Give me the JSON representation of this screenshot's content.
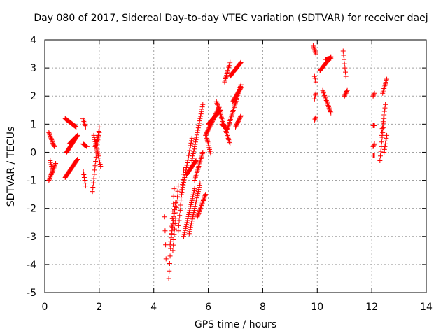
{
  "chart_data": {
    "type": "scatter",
    "title": "Day 080 of 2017, Sidereal Day-to-day VTEC variation (SDTVAR) for receiver daej",
    "xlabel": "GPS time / hours",
    "ylabel": "SDTVAR / TECUs",
    "xlim": [
      0,
      14
    ],
    "ylim": [
      -5,
      4
    ],
    "xticks": [
      "0",
      "2",
      "4",
      "6",
      "8",
      "10",
      "12",
      "14"
    ],
    "yticks": [
      "-5",
      "-4",
      "-3",
      "-2",
      "-1",
      "0",
      "1",
      "2",
      "3",
      "4"
    ],
    "grid": true,
    "marker": "+",
    "marker_color": "#ff0000",
    "series": [
      {
        "name": "SDTVAR",
        "segments": [
          {
            "x": [
              0.15,
              0.35
            ],
            "y": [
              0.7,
              0.2
            ]
          },
          {
            "x": [
              0.15,
              0.4
            ],
            "y": [
              -1.0,
              -0.4
            ]
          },
          {
            "x": [
              0.2,
              0.3
            ],
            "y": [
              -0.3,
              -0.7
            ]
          },
          {
            "x": [
              0.75,
              1.15
            ],
            "y": [
              1.2,
              0.9
            ]
          },
          {
            "x": [
              0.75,
              1.2
            ],
            "y": [
              -0.9,
              -0.25
            ]
          },
          {
            "x": [
              0.8,
              1.2
            ],
            "y": [
              0.0,
              0.6
            ]
          },
          {
            "x": [
              0.9,
              1.15
            ],
            "y": [
              0.3,
              0.55
            ]
          },
          {
            "x": [
              1.4,
              1.5
            ],
            "y": [
              1.2,
              0.9
            ]
          },
          {
            "x": [
              1.4,
              1.5
            ],
            "y": [
              -0.6,
              -1.2
            ]
          },
          {
            "x": [
              1.4,
              1.55
            ],
            "y": [
              0.3,
              0.2
            ]
          },
          {
            "x": [
              1.75,
              2.0
            ],
            "y": [
              -1.4,
              0.9
            ]
          },
          {
            "x": [
              1.8,
              2.05
            ],
            "y": [
              0.6,
              -0.5
            ]
          },
          {
            "x": [
              1.85,
              2.0
            ],
            "y": [
              0.2,
              0.7
            ]
          },
          {
            "x": [
              4.4,
              4.45
            ],
            "y": [
              -2.3,
              -3.8
            ]
          },
          {
            "x": [
              4.55,
              4.75
            ],
            "y": [
              -4.5,
              -1.3
            ]
          },
          {
            "x": [
              4.6,
              4.8
            ],
            "y": [
              -3.3,
              -1.8
            ]
          },
          {
            "x": [
              4.7,
              4.9
            ],
            "y": [
              -3.5,
              -1.2
            ]
          },
          {
            "x": [
              4.9,
              5.1
            ],
            "y": [
              -2.8,
              -0.6
            ]
          },
          {
            "x": [
              5.0,
              5.4
            ],
            "y": [
              -1.6,
              0.5
            ]
          },
          {
            "x": [
              5.1,
              5.5
            ],
            "y": [
              -3.0,
              -1.3
            ]
          },
          {
            "x": [
              5.2,
              5.55
            ],
            "y": [
              -0.8,
              -0.3
            ]
          },
          {
            "x": [
              5.3,
              5.7
            ],
            "y": [
              -2.9,
              -1.1
            ]
          },
          {
            "x": [
              5.4,
              5.8
            ],
            "y": [
              -0.3,
              1.7
            ]
          },
          {
            "x": [
              5.5,
              5.8
            ],
            "y": [
              -1.0,
              0.0
            ]
          },
          {
            "x": [
              5.6,
              5.9
            ],
            "y": [
              -2.3,
              -1.5
            ]
          },
          {
            "x": [
              5.9,
              6.4
            ],
            "y": [
              0.6,
              1.6
            ]
          },
          {
            "x": [
              5.95,
              6.1
            ],
            "y": [
              0.5,
              -0.1
            ]
          },
          {
            "x": [
              6.0,
              6.45
            ],
            "y": [
              1.0,
              1.5
            ]
          },
          {
            "x": [
              6.3,
              6.8
            ],
            "y": [
              1.8,
              0.3
            ]
          },
          {
            "x": [
              6.5,
              6.7
            ],
            "y": [
              1.0,
              0.8
            ]
          },
          {
            "x": [
              6.6,
              6.8
            ],
            "y": [
              2.5,
              3.2
            ]
          },
          {
            "x": [
              6.7,
              7.2
            ],
            "y": [
              0.8,
              2.4
            ]
          },
          {
            "x": [
              6.8,
              7.2
            ],
            "y": [
              2.7,
              3.2
            ]
          },
          {
            "x": [
              6.9,
              7.2
            ],
            "y": [
              1.8,
              2.3
            ]
          },
          {
            "x": [
              7.0,
              7.2
            ],
            "y": [
              0.9,
              1.3
            ]
          },
          {
            "x": [
              9.85,
              9.95
            ],
            "y": [
              3.8,
              3.5
            ]
          },
          {
            "x": [
              9.9,
              9.95
            ],
            "y": [
              2.7,
              2.5
            ]
          },
          {
            "x": [
              9.9,
              9.95
            ],
            "y": [
              1.9,
              2.1
            ]
          },
          {
            "x": [
              9.9,
              9.95
            ],
            "y": [
              1.15,
              1.25
            ]
          },
          {
            "x": [
              10.1,
              10.5
            ],
            "y": [
              2.9,
              3.4
            ]
          },
          {
            "x": [
              10.2,
              10.5
            ],
            "y": [
              2.2,
              1.4
            ]
          },
          {
            "x": [
              10.3,
              10.5
            ],
            "y": [
              3.3,
              3.35
            ]
          },
          {
            "x": [
              10.95,
              11.05
            ],
            "y": [
              3.6,
              2.7
            ]
          },
          {
            "x": [
              11.0,
              11.1
            ],
            "y": [
              2.0,
              2.2
            ]
          },
          {
            "x": [
              12.05,
              12.1
            ],
            "y": [
              2.0,
              2.1
            ]
          },
          {
            "x": [
              12.05,
              12.1
            ],
            "y": [
              0.95,
              0.95
            ]
          },
          {
            "x": [
              12.05,
              12.1
            ],
            "y": [
              0.2,
              0.3
            ]
          },
          {
            "x": [
              12.05,
              12.1
            ],
            "y": [
              -0.1,
              -0.1
            ]
          },
          {
            "x": [
              12.3,
              12.45
            ],
            "y": [
              -0.3,
              1.2
            ]
          },
          {
            "x": [
              12.35,
              12.5
            ],
            "y": [
              0.6,
              1.7
            ]
          },
          {
            "x": [
              12.4,
              12.55
            ],
            "y": [
              2.1,
              2.6
            ]
          },
          {
            "x": [
              12.45,
              12.55
            ],
            "y": [
              0.0,
              0.6
            ]
          }
        ]
      }
    ]
  }
}
